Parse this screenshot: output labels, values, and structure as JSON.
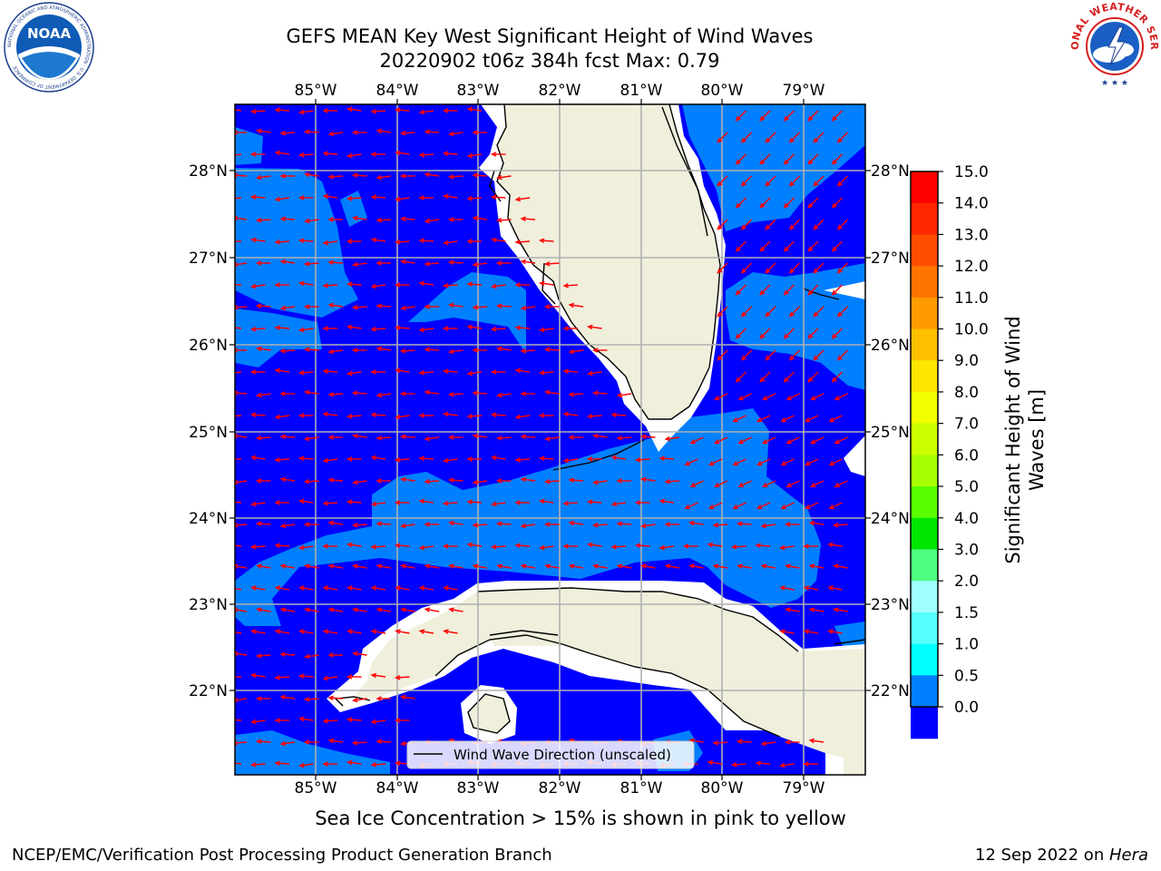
{
  "title_line1": "GEFS MEAN Key West Significant Height of Wind Waves",
  "title_line2": "20220902 t06z 384h fcst   Max: 0.79",
  "longitude_ticks": [
    "85°W",
    "84°W",
    "83°W",
    "82°W",
    "81°W",
    "80°W",
    "79°W"
  ],
  "latitude_ticks": [
    "28°N",
    "27°N",
    "26°N",
    "25°N",
    "24°N",
    "23°N",
    "22°N"
  ],
  "legend_label": "Wind Wave Direction (unscaled)",
  "colorbar": {
    "label_line1": "Significant Height of Wind",
    "label_line2": "Waves [m]",
    "levels": [
      "15.0",
      "14.0",
      "13.0",
      "12.0",
      "11.0",
      "10.0",
      "9.0",
      "8.0",
      "7.0",
      "6.0",
      "5.0",
      "4.0",
      "3.0",
      "2.0",
      "1.5",
      "1.0",
      "0.5",
      "0.0"
    ],
    "colors": [
      "#ff0000",
      "#ff2600",
      "#ff4d00",
      "#ff7300",
      "#ff9a00",
      "#ffc000",
      "#ffe600",
      "#f2ff00",
      "#ccff00",
      "#a6ff00",
      "#59ff00",
      "#00e600",
      "#4dff80",
      "#a0ffff",
      "#55ffff",
      "#00ffff",
      "#0080ff",
      "#0000ff"
    ]
  },
  "colors": {
    "ocean_low": "#0000ff",
    "ocean_mid": "#0080ff",
    "land": "#efefdc",
    "arrow": "#ff0000",
    "grid": "#b0b0b0"
  },
  "footnote": "Sea Ice Concentration > 15% is shown in pink to yellow",
  "credit": "NCEP/EMC/Verification Post Processing Product Generation Branch",
  "date_prefix": "12 Sep 2022 on ",
  "date_machine": "Hera",
  "logos": {
    "noaa_text": "NOAA",
    "noaa_ring": "NATIONAL OCEANIC AND ATMOSPHERIC ADMINISTRATION · U.S. DEPARTMENT OF COMMERCE",
    "nws_ring": "NATIONAL WEATHER SERVICE"
  }
}
